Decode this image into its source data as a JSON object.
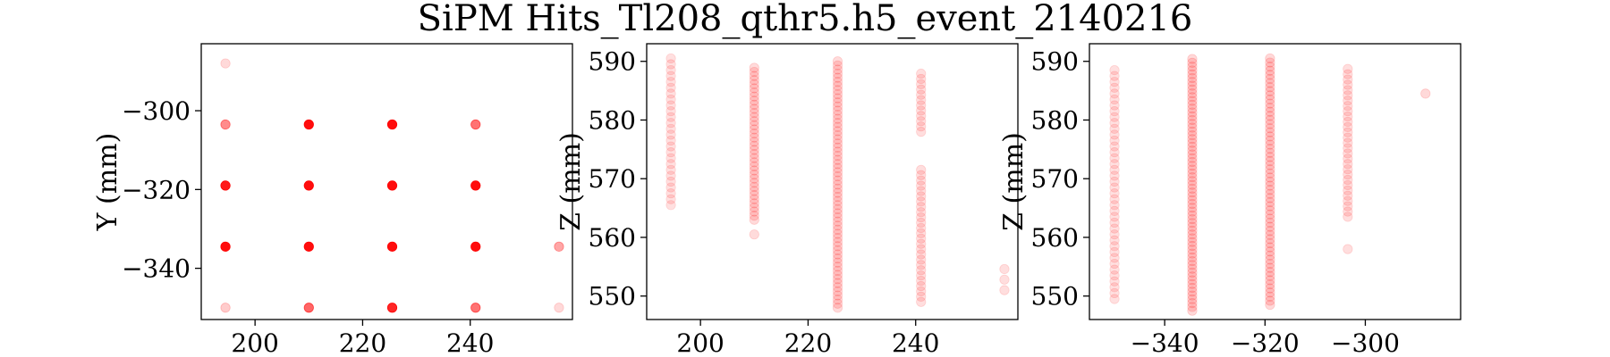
{
  "figure": {
    "suptitle": "SiPM Hits_Tl208_qthr5.h5_event_2140216"
  },
  "chart_data": [
    {
      "type": "scatter",
      "title": "",
      "xlabel": "",
      "ylabel": "Y (mm)",
      "xlim": [
        190,
        259
      ],
      "ylim": [
        -353,
        -283
      ],
      "xticks": [
        200,
        220,
        240
      ],
      "yticks": [
        -300,
        -320,
        -340
      ],
      "xtick_labels": [
        "200",
        "220",
        "240"
      ],
      "ytick_labels": [
        "−300",
        "−320",
        "−340"
      ],
      "color": "#ff0000",
      "points": [
        {
          "x": 194.5,
          "y": -288.0,
          "a": 0.15
        },
        {
          "x": 194.5,
          "y": -303.5,
          "a": 0.45
        },
        {
          "x": 210.0,
          "y": -303.5,
          "a": 0.95
        },
        {
          "x": 225.5,
          "y": -303.5,
          "a": 0.95
        },
        {
          "x": 241.0,
          "y": -303.5,
          "a": 0.55
        },
        {
          "x": 194.5,
          "y": -319.0,
          "a": 0.9
        },
        {
          "x": 210.0,
          "y": -319.0,
          "a": 0.95
        },
        {
          "x": 225.5,
          "y": -319.0,
          "a": 0.95
        },
        {
          "x": 241.0,
          "y": -319.0,
          "a": 0.95
        },
        {
          "x": 194.5,
          "y": -334.5,
          "a": 0.95
        },
        {
          "x": 210.0,
          "y": -334.5,
          "a": 0.95
        },
        {
          "x": 225.5,
          "y": -334.5,
          "a": 0.95
        },
        {
          "x": 241.0,
          "y": -334.5,
          "a": 0.95
        },
        {
          "x": 256.5,
          "y": -334.5,
          "a": 0.35
        },
        {
          "x": 194.5,
          "y": -350.0,
          "a": 0.2
        },
        {
          "x": 210.0,
          "y": -350.0,
          "a": 0.6
        },
        {
          "x": 225.5,
          "y": -350.0,
          "a": 0.85
        },
        {
          "x": 241.0,
          "y": -350.0,
          "a": 0.55
        },
        {
          "x": 256.5,
          "y": -350.0,
          "a": 0.15
        }
      ]
    },
    {
      "type": "scatter",
      "title": "",
      "xlabel": "",
      "ylabel": "Z (mm)",
      "xlim": [
        190,
        259
      ],
      "ylim": [
        546,
        593
      ],
      "xticks": [
        200,
        220,
        240
      ],
      "yticks": [
        550,
        560,
        570,
        580,
        590
      ],
      "xtick_labels": [
        "200",
        "220",
        "240"
      ],
      "ytick_labels": [
        "550",
        "560",
        "570",
        "580",
        "590"
      ],
      "color": "#ff0000",
      "columns": [
        {
          "x": 194.5,
          "segments": [
            [
              565.5,
              590.5
            ]
          ],
          "step": 1.0,
          "a": 0.12
        },
        {
          "x": 210.0,
          "segments": [
            [
              560.5,
              560.5
            ],
            [
              563.0,
              589.5
            ]
          ],
          "step": 0.7,
          "a": 0.14
        },
        {
          "x": 225.5,
          "segments": [
            [
              548.0,
              590.5
            ]
          ],
          "step": 0.7,
          "a": 0.14
        },
        {
          "x": 241.0,
          "segments": [
            [
              549.0,
              572.0
            ],
            [
              578.0,
              588.5
            ]
          ],
          "step": 0.9,
          "a": 0.13
        },
        {
          "x": 256.5,
          "segments": [
            [
              551.0,
              555.0
            ]
          ],
          "step": 1.8,
          "a": 0.13
        }
      ]
    },
    {
      "type": "scatter",
      "title": "",
      "xlabel": "",
      "ylabel": "Z (mm)",
      "xlim": [
        -355,
        -281
      ],
      "ylim": [
        546,
        593
      ],
      "xticks": [
        -340,
        -320,
        -300
      ],
      "yticks": [
        550,
        560,
        570,
        580,
        590
      ],
      "xtick_labels": [
        "−340",
        "−320",
        "−300"
      ],
      "ytick_labels": [
        "550",
        "560",
        "570",
        "580",
        "590"
      ],
      "color": "#ff0000",
      "columns": [
        {
          "x": -350.0,
          "segments": [
            [
              549.5,
              588.5
            ]
          ],
          "step": 1.0,
          "a": 0.12
        },
        {
          "x": -334.5,
          "segments": [
            [
              547.5,
              590.5
            ]
          ],
          "step": 0.65,
          "a": 0.15
        },
        {
          "x": -319.0,
          "segments": [
            [
              548.5,
              590.5
            ]
          ],
          "step": 0.7,
          "a": 0.15
        },
        {
          "x": -303.5,
          "segments": [
            [
              558.0,
              558.0
            ],
            [
              563.5,
              589.5
            ]
          ],
          "step": 0.9,
          "a": 0.13
        },
        {
          "x": -288.0,
          "segments": [
            [
              584.5,
              584.5
            ]
          ],
          "step": 1.0,
          "a": 0.15
        }
      ]
    }
  ]
}
